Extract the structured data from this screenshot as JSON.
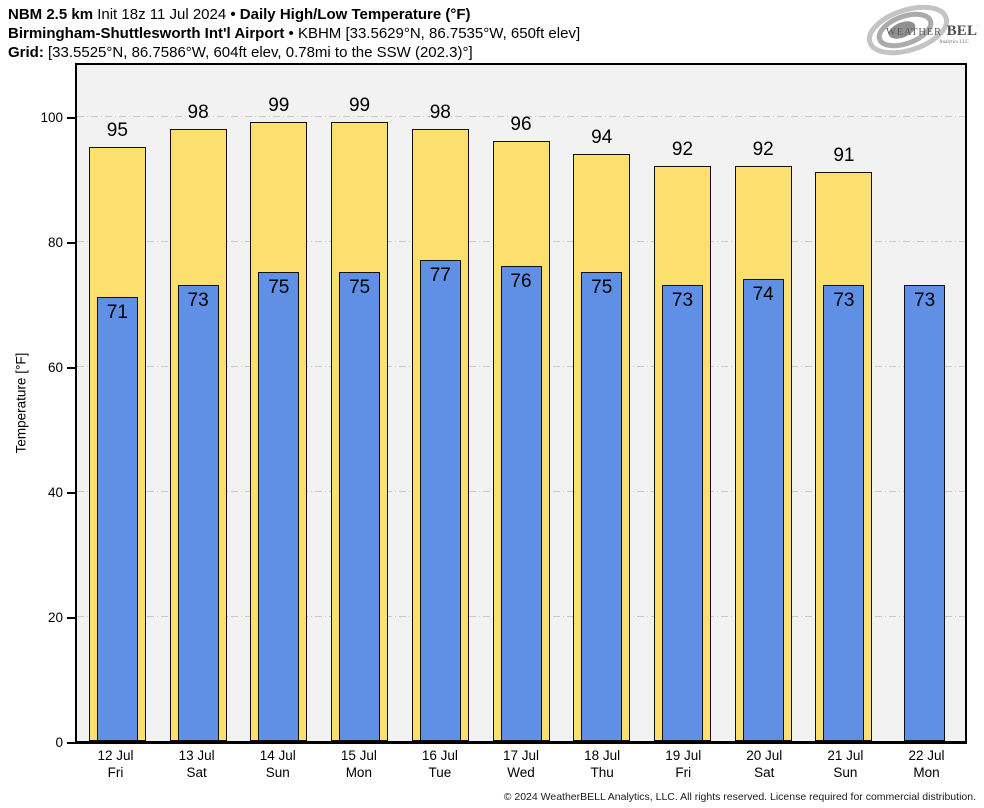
{
  "header": {
    "line1": {
      "model": "NBM 2.5 km",
      "init": "Init 18z 11 Jul 2024",
      "separator": "•",
      "title": "Daily High/Low Temperature (°F)"
    },
    "line2": {
      "station": "Birmingham-Shuttlesworth Int'l Airport",
      "separator": "•",
      "details": "KBHM [33.5629°N, 86.7535°W, 650ft elev]"
    },
    "line3": {
      "label": "Grid:",
      "details": "[33.5525°N, 86.7586°W, 604ft elev, 0.78mi to the SSW (202.3)°]"
    }
  },
  "logo": {
    "weather": "WEATHER",
    "bell": "BELL",
    "subtext": "Analytics LLC"
  },
  "chart_data": {
    "type": "bar",
    "title": "Daily High/Low Temperature (°F)",
    "xlabel": "",
    "ylabel": "Temperature [°F]",
    "ylim": [
      0,
      108.8
    ],
    "yticks": [
      0,
      20,
      40,
      60,
      80,
      100
    ],
    "grid": "horizontal dash-dot lines at each ytick, light gray",
    "legend": "none",
    "categories": [
      {
        "date": "12 Jul",
        "day": "Fri"
      },
      {
        "date": "13 Jul",
        "day": "Sat"
      },
      {
        "date": "14 Jul",
        "day": "Sun"
      },
      {
        "date": "15 Jul",
        "day": "Mon"
      },
      {
        "date": "16 Jul",
        "day": "Tue"
      },
      {
        "date": "17 Jul",
        "day": "Wed"
      },
      {
        "date": "18 Jul",
        "day": "Thu"
      },
      {
        "date": "19 Jul",
        "day": "Fri"
      },
      {
        "date": "20 Jul",
        "day": "Sat"
      },
      {
        "date": "21 Jul",
        "day": "Sun"
      },
      {
        "date": "22 Jul",
        "day": "Mon"
      }
    ],
    "series": [
      {
        "name": "High",
        "color": "#fcdf6c",
        "values": [
          95,
          98,
          99,
          99,
          98,
          96,
          94,
          92,
          92,
          91,
          null
        ]
      },
      {
        "name": "Low",
        "color": "#5f90e5",
        "values": [
          71,
          73,
          75,
          75,
          77,
          76,
          75,
          73,
          74,
          73,
          73
        ]
      }
    ]
  },
  "footer": {
    "copyright": "© 2024 WeatherBELL Analytics, LLC. All rights reserved. License required for commercial distribution."
  }
}
